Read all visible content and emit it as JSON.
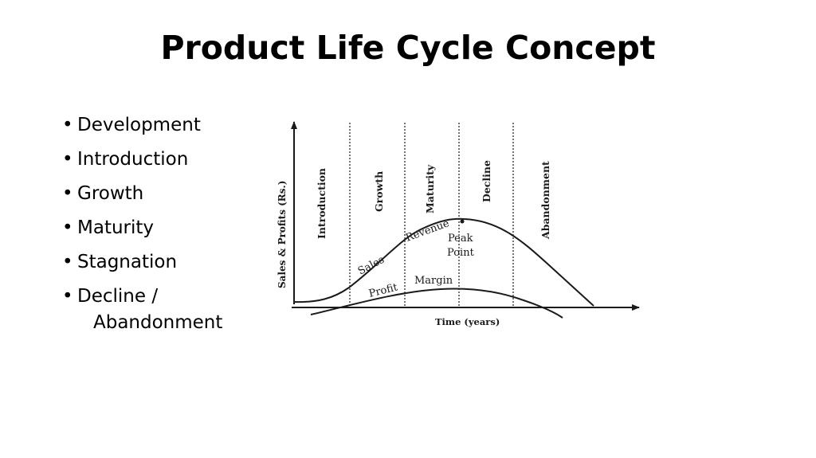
{
  "slide": {
    "title": "Product Life Cycle Concept"
  },
  "bullets": [
    {
      "text": "Development"
    },
    {
      "text": "Introduction"
    },
    {
      "text": "Growth"
    },
    {
      "text": "Maturity"
    },
    {
      "text": "Stagnation"
    },
    {
      "text": "Decline /",
      "continuation": "Abandonment"
    }
  ],
  "bullet_symbol": "•",
  "diagram": {
    "y_axis_label": "Sales & Profits (Rs.)",
    "x_axis_label": "Time (years)",
    "stages": [
      "Introduction",
      "Growth",
      "Maturity",
      "Decline",
      "Abandonment"
    ],
    "curve_labels": {
      "sales": "Sales",
      "revenue": "Revenue",
      "peak_line1": "Peak",
      "peak_line2": "Point",
      "profit": "Profit",
      "margin": "Margin"
    },
    "ink_color": "#1a1a1a"
  }
}
